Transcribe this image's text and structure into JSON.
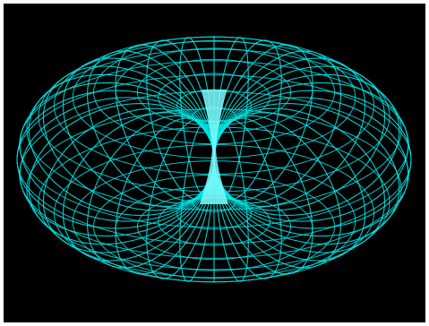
{
  "figure": {
    "subject": "wireframe-horn-torus",
    "background_color": "#000000",
    "frame_color": "#ffffff",
    "line_color": "#00e5e5",
    "glow_color": "#7ffcff"
  }
}
